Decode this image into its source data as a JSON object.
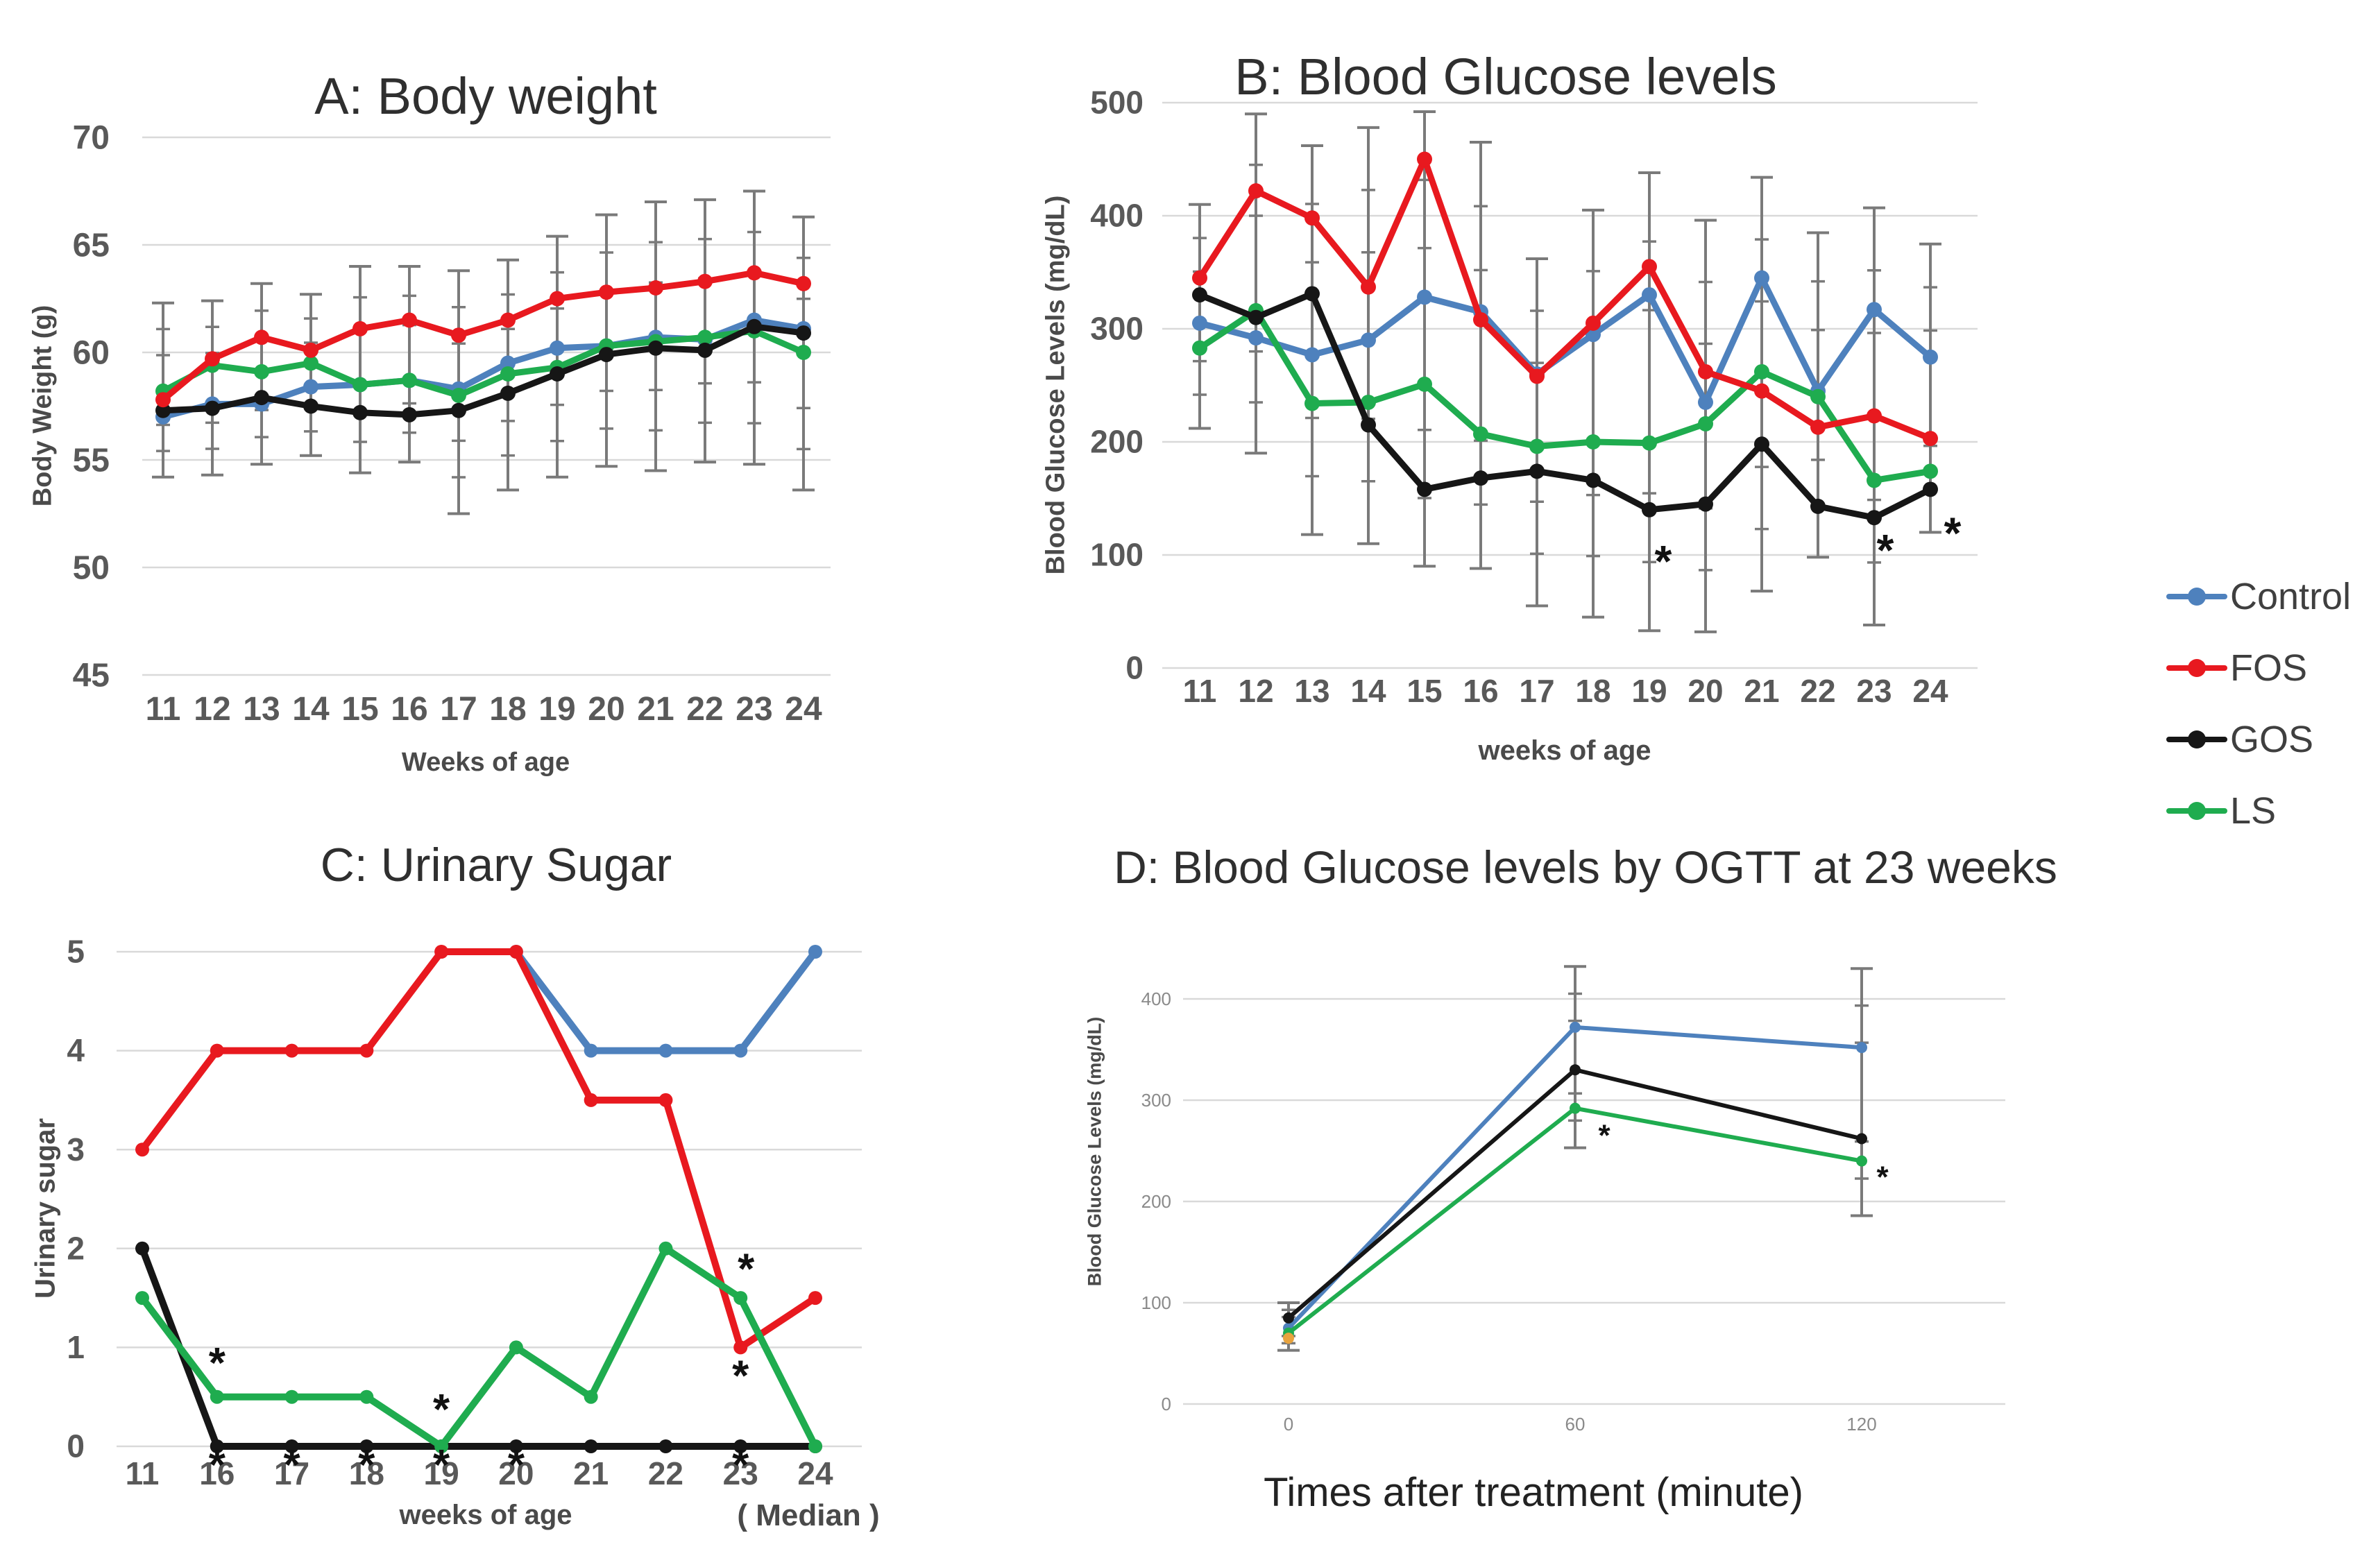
{
  "figure": {
    "background": "#ffffff",
    "description_titles": {
      "a": "A: Body weight",
      "b": "B: Blood Glucose levels",
      "c": "C: Urinary Sugar",
      "d": "D: Blood Glucose levels by OGTT at 23 weeks"
    }
  },
  "colors": {
    "control": "#4E81BD",
    "fos": "#E8191F",
    "gos": "#161616",
    "ls": "#1FAC4F",
    "fos_point_d": "#E8A33D",
    "error_bar": "#7a7a7a",
    "grid": "#d9d9d9",
    "tick_text": "#595959",
    "small_tick_text": "#8a8a8a",
    "asterisk": "#111111"
  },
  "legend": {
    "items": [
      {
        "key": "control",
        "label": "Control"
      },
      {
        "key": "fos",
        "label": "FOS"
      },
      {
        "key": "gos",
        "label": "GOS"
      },
      {
        "key": "ls",
        "label": "LS"
      }
    ]
  },
  "chart_data": [
    {
      "id": "A",
      "type": "line",
      "title": "A: Body weight",
      "xlabel": "Weeks of age",
      "ylabel": "Body Weight (g)",
      "ylim": [
        45,
        70
      ],
      "yticks": [
        45,
        50,
        55,
        60,
        65,
        70
      ],
      "grid": true,
      "categories": [
        11,
        12,
        13,
        14,
        15,
        16,
        17,
        18,
        19,
        20,
        21,
        22,
        23,
        24
      ],
      "series": [
        {
          "name": "Control",
          "key": "control",
          "values": [
            57.0,
            57.6,
            57.6,
            58.4,
            58.5,
            58.7,
            58.3,
            59.5,
            60.2,
            60.3,
            60.7,
            60.6,
            61.5,
            61.1
          ]
        },
        {
          "name": "LS",
          "key": "ls",
          "values": [
            58.2,
            59.4,
            59.1,
            59.5,
            58.5,
            58.7,
            58.0,
            59.0,
            59.3,
            60.3,
            60.5,
            60.7,
            61.0,
            60.0
          ]
        },
        {
          "name": "GOS",
          "key": "gos",
          "values": [
            57.3,
            57.4,
            57.9,
            57.5,
            57.2,
            57.1,
            57.3,
            58.1,
            59.0,
            59.9,
            60.2,
            60.1,
            61.2,
            60.9
          ]
        },
        {
          "name": "FOS",
          "key": "fos",
          "values": [
            57.8,
            59.7,
            60.7,
            60.1,
            61.1,
            61.5,
            60.8,
            61.5,
            62.5,
            62.8,
            63.0,
            63.3,
            63.7,
            63.2
          ]
        }
      ],
      "errorbars": [
        {
          "x": 11,
          "lo": 54.2,
          "hi": 62.3
        },
        {
          "x": 12,
          "lo": 54.3,
          "hi": 62.4
        },
        {
          "x": 13,
          "lo": 54.8,
          "hi": 63.2
        },
        {
          "x": 14,
          "lo": 55.2,
          "hi": 62.7
        },
        {
          "x": 15,
          "lo": 54.4,
          "hi": 64.0
        },
        {
          "x": 16,
          "lo": 54.9,
          "hi": 64.0
        },
        {
          "x": 17,
          "lo": 52.5,
          "hi": 63.8
        },
        {
          "x": 18,
          "lo": 53.6,
          "hi": 64.3
        },
        {
          "x": 19,
          "lo": 54.2,
          "hi": 65.4
        },
        {
          "x": 20,
          "lo": 54.7,
          "hi": 66.4
        },
        {
          "x": 21,
          "lo": 54.5,
          "hi": 67.0
        },
        {
          "x": 22,
          "lo": 54.9,
          "hi": 67.1
        },
        {
          "x": 23,
          "lo": 54.8,
          "hi": 67.5
        },
        {
          "x": 24,
          "lo": 53.6,
          "hi": 66.3
        }
      ],
      "annotations": []
    },
    {
      "id": "B",
      "type": "line",
      "title": "B: Blood Glucose levels",
      "xlabel": "weeks of age",
      "ylabel": "Blood Glucose Levels  (mg/dL)",
      "ylim": [
        0,
        500
      ],
      "yticks": [
        0,
        100,
        200,
        300,
        400,
        500
      ],
      "grid": true,
      "categories": [
        11,
        12,
        13,
        14,
        15,
        16,
        17,
        18,
        19,
        20,
        21,
        22,
        23,
        24
      ],
      "series": [
        {
          "name": "Control",
          "key": "control",
          "values": [
            305,
            292,
            277,
            290,
            328,
            315,
            260,
            295,
            330,
            235,
            345,
            245,
            317,
            275
          ]
        },
        {
          "name": "LS",
          "key": "ls",
          "values": [
            283,
            316,
            234,
            235,
            251,
            207,
            196,
            200,
            199,
            216,
            262,
            240,
            166,
            174
          ]
        },
        {
          "name": "FOS",
          "key": "fos",
          "values": [
            345,
            422,
            398,
            337,
            450,
            308,
            258,
            305,
            355,
            262,
            245,
            213,
            223,
            203
          ]
        },
        {
          "name": "GOS",
          "key": "gos",
          "values": [
            330,
            310,
            331,
            215,
            158,
            168,
            174,
            166,
            140,
            145,
            198,
            143,
            133,
            158
          ]
        }
      ],
      "errorbars": [
        {
          "x": 11,
          "lo": 212,
          "hi": 410
        },
        {
          "x": 12,
          "lo": 190,
          "hi": 490
        },
        {
          "x": 13,
          "lo": 118,
          "hi": 462
        },
        {
          "x": 14,
          "lo": 110,
          "hi": 478
        },
        {
          "x": 15,
          "lo": 90,
          "hi": 492
        },
        {
          "x": 16,
          "lo": 88,
          "hi": 465
        },
        {
          "x": 17,
          "lo": 55,
          "hi": 362
        },
        {
          "x": 18,
          "lo": 45,
          "hi": 405
        },
        {
          "x": 19,
          "lo": 33,
          "hi": 438
        },
        {
          "x": 20,
          "lo": 32,
          "hi": 396
        },
        {
          "x": 21,
          "lo": 68,
          "hi": 434
        },
        {
          "x": 22,
          "lo": 98,
          "hi": 385
        },
        {
          "x": 23,
          "lo": 38,
          "hi": 407
        },
        {
          "x": 24,
          "lo": 120,
          "hi": 375
        }
      ],
      "annotations": [
        {
          "x": 19,
          "v": 95,
          "dx": 20,
          "text": "*"
        },
        {
          "x": 23,
          "v": 105,
          "dx": 16,
          "text": "*"
        },
        {
          "x": 24,
          "v": 120,
          "dx": 32,
          "text": "*"
        }
      ]
    },
    {
      "id": "C",
      "type": "line",
      "title": "C: Urinary Sugar",
      "xlabel": "weeks of age",
      "xlabel2": "( Median )",
      "ylabel": "Urinary sugar",
      "ylim": [
        0,
        5
      ],
      "yticks": [
        0,
        1,
        2,
        3,
        4,
        5
      ],
      "grid": true,
      "categories": [
        11,
        16,
        17,
        18,
        19,
        20,
        21,
        22,
        23,
        24
      ],
      "series": [
        {
          "name": "Control",
          "key": "control",
          "values": [
            null,
            null,
            null,
            null,
            null,
            5,
            4,
            4,
            4,
            5
          ]
        },
        {
          "name": "FOS",
          "key": "fos",
          "values": [
            3,
            4,
            4,
            4,
            5,
            5,
            3.5,
            3.5,
            1,
            1.5
          ]
        },
        {
          "name": "GOS",
          "key": "gos",
          "values": [
            2,
            0,
            0,
            0,
            0,
            0,
            0,
            0,
            0,
            0
          ]
        },
        {
          "name": "LS",
          "key": "ls",
          "values": [
            1.5,
            0.5,
            0.5,
            0.5,
            0,
            1,
            0.5,
            2,
            1.5,
            0
          ]
        }
      ],
      "errorbars": [],
      "annotations": [
        {
          "x": 16,
          "v": 0.85,
          "dx": 0,
          "text": "*"
        },
        {
          "x": 19,
          "v": 0.38,
          "dx": 0,
          "text": "*"
        },
        {
          "x": 23,
          "v": 1.8,
          "dx": 8,
          "text": "*"
        },
        {
          "x": 23,
          "v": 0.72,
          "dx": 0,
          "text": "*"
        },
        {
          "x": 16,
          "v": -0.18,
          "dx": 0,
          "text": "*"
        },
        {
          "x": 17,
          "v": -0.18,
          "dx": 0,
          "text": "*"
        },
        {
          "x": 18,
          "v": -0.18,
          "dx": 0,
          "text": "*"
        },
        {
          "x": 19,
          "v": -0.18,
          "dx": 0,
          "text": "*"
        },
        {
          "x": 20,
          "v": -0.18,
          "dx": 0,
          "text": "*"
        },
        {
          "x": 23,
          "v": -0.18,
          "dx": 0,
          "text": "*"
        }
      ]
    },
    {
      "id": "D",
      "type": "line",
      "title": "D: Blood Glucose levels by OGTT at 23 weeks",
      "xlabel": "Times after treatment (minute)",
      "ylabel": "Blood Glucose Levels  (mg/dL)",
      "ylim": [
        0,
        450
      ],
      "yticks": [
        0,
        100,
        200,
        300,
        400
      ],
      "grid": true,
      "categories": [
        0,
        60,
        120
      ],
      "series": [
        {
          "name": "Control",
          "key": "control",
          "values": [
            75,
            372,
            352
          ]
        },
        {
          "name": "GOS",
          "key": "gos",
          "values": [
            85,
            330,
            262
          ]
        },
        {
          "name": "LS",
          "key": "ls",
          "values": [
            70,
            292,
            240
          ]
        },
        {
          "name": "FOS",
          "key": "fos_point_d",
          "values": [
            65,
            null,
            null
          ]
        }
      ],
      "errorbars": [
        {
          "x": 0,
          "lo": 53,
          "hi": 100
        },
        {
          "x": 60,
          "lo": 253,
          "hi": 432
        },
        {
          "x": 120,
          "lo": 186,
          "hi": 430
        }
      ],
      "annotations": [
        {
          "x": 60,
          "v": 266,
          "dx": 42,
          "text": "*"
        },
        {
          "x": 120,
          "v": 225,
          "dx": 30,
          "text": "*"
        }
      ]
    }
  ]
}
